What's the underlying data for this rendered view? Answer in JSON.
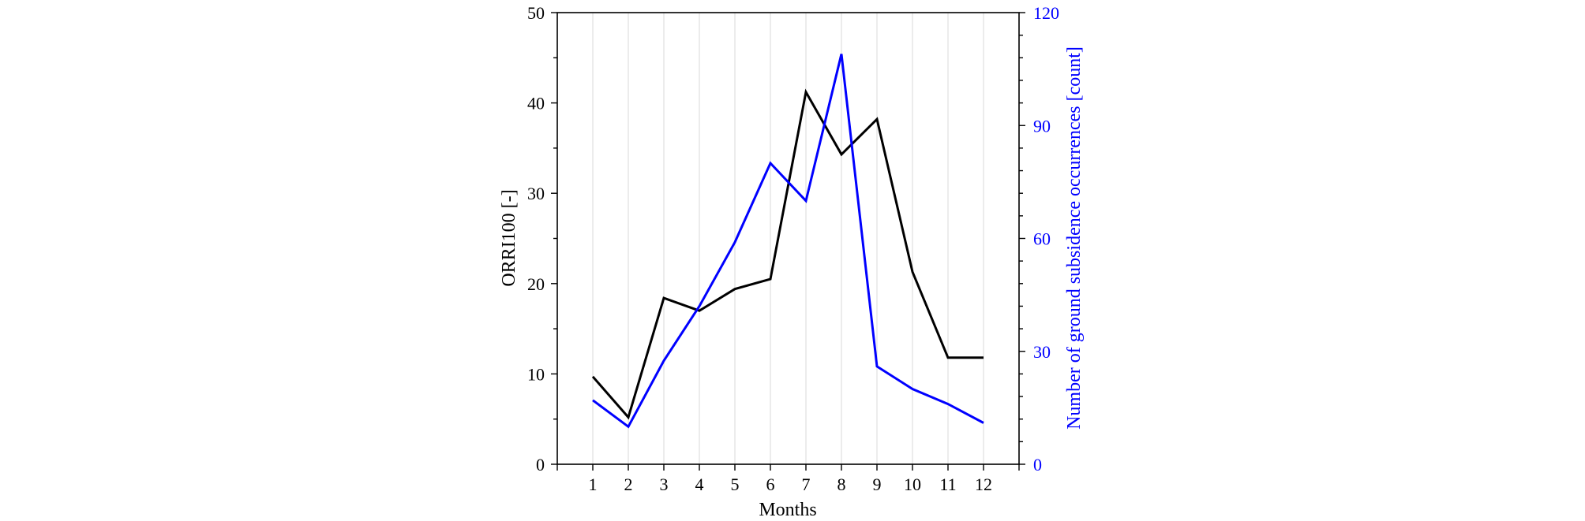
{
  "chart_data": {
    "type": "line",
    "xlabel": "Months",
    "ylabel_left": "ORRI100 [-]",
    "ylabel_right": "Number of ground subsidence occurrences [count]",
    "x": [
      1,
      2,
      3,
      4,
      5,
      6,
      7,
      8,
      9,
      10,
      11,
      12
    ],
    "xlim": [
      0,
      13
    ],
    "ylim_left": [
      0,
      50
    ],
    "ylim_right": [
      0,
      120
    ],
    "yticks_left": [
      0,
      10,
      20,
      30,
      40,
      50
    ],
    "yticks_right": [
      0,
      30,
      60,
      90,
      120
    ],
    "grid": "vertical",
    "legend": "none",
    "series": [
      {
        "axis": "left",
        "color": "#000000",
        "values": [
          9.7,
          5.2,
          18.4,
          17.0,
          19.4,
          20.5,
          41.2,
          34.3,
          38.2,
          21.3,
          11.8,
          11.8
        ]
      },
      {
        "axis": "right",
        "color": "#0000ff",
        "values": [
          17,
          10,
          27.5,
          42,
          59,
          80,
          70,
          109,
          26,
          20,
          16,
          11
        ]
      }
    ]
  }
}
